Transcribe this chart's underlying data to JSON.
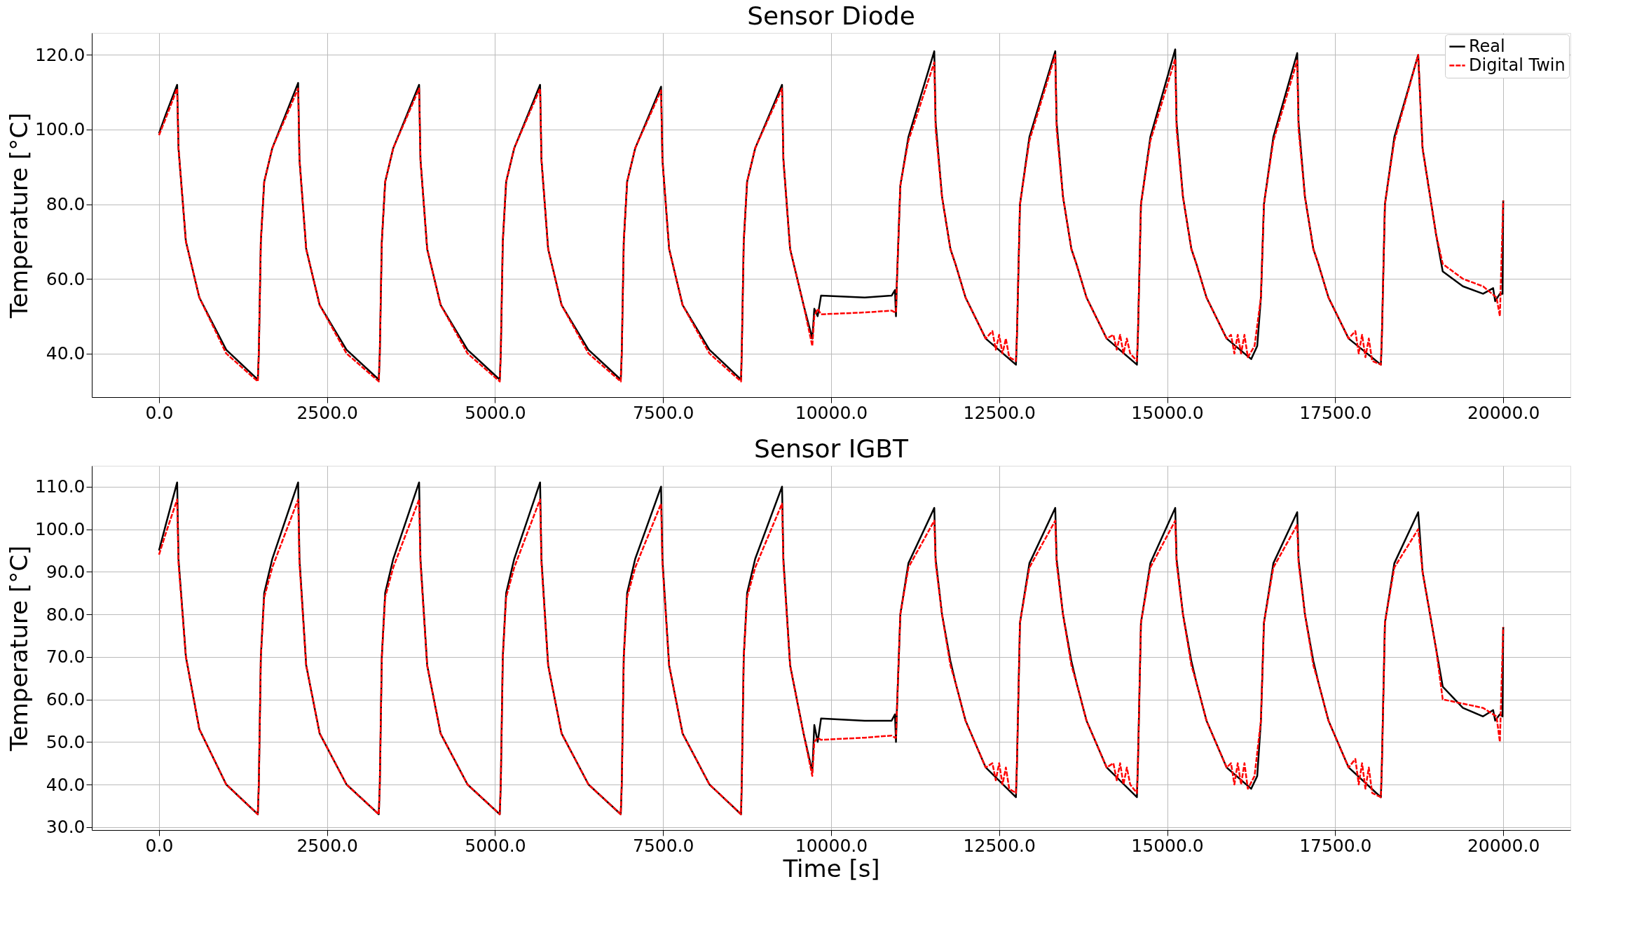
{
  "chart_data": [
    {
      "type": "line",
      "title": "Sensor Diode",
      "ylabel": "Temperature [°C]",
      "xlim": [
        -1000,
        21000
      ],
      "ylim": [
        28.3,
        125.9
      ],
      "xticks": [
        {
          "value": 0,
          "label": "0.0"
        },
        {
          "value": 2500,
          "label": "2500.0"
        },
        {
          "value": 5000,
          "label": "5000.0"
        },
        {
          "value": 7500,
          "label": "7500.0"
        },
        {
          "value": 10000,
          "label": "10000.0"
        },
        {
          "value": 12500,
          "label": "12500.0"
        },
        {
          "value": 15000,
          "label": "15000.0"
        },
        {
          "value": 17500,
          "label": "17500.0"
        },
        {
          "value": 20000,
          "label": "20000.0"
        }
      ],
      "yticks": [
        {
          "value": 40,
          "label": "40.0"
        },
        {
          "value": 60,
          "label": "60.0"
        },
        {
          "value": 80,
          "label": "80.0"
        },
        {
          "value": 100,
          "label": "100.0"
        },
        {
          "value": 120,
          "label": "120.0"
        }
      ],
      "grid": true,
      "legend": "top right",
      "series": [
        {
          "name": "Real",
          "color": "#000000",
          "line_style": "solid",
          "x": [
            0,
            100,
            270,
            290,
            400,
            600,
            1000,
            1470,
            1485,
            1515,
            1565,
            1685,
            2070,
            2090,
            2190,
            2390,
            2790,
            3270,
            3285,
            3315,
            3365,
            3485,
            3870,
            3890,
            3990,
            4190,
            4590,
            5070,
            5085,
            5115,
            5165,
            5285,
            5670,
            5690,
            5790,
            5990,
            6390,
            6870,
            6885,
            6915,
            6965,
            7085,
            7470,
            7490,
            7590,
            7790,
            8190,
            8660,
            8670,
            8700,
            8750,
            8870,
            9270,
            9290,
            9390,
            9590,
            9720,
            9750,
            9800,
            9850,
            10500,
            10900,
            10950,
            10965,
            10980,
            11030,
            11150,
            11535,
            11555,
            11650,
            11775,
            11850,
            12000,
            12300,
            12750,
            12765,
            12810,
            12950,
            13335,
            13355,
            13450,
            13575,
            13650,
            13800,
            14100,
            14550,
            14565,
            14610,
            14750,
            15120,
            15140,
            15235,
            15360,
            15435,
            15585,
            15885,
            16250,
            16340,
            16395,
            16440,
            16580,
            16935,
            16955,
            17050,
            17175,
            17250,
            17400,
            17700,
            18180,
            18195,
            18240,
            18380,
            18735,
            18800,
            19000,
            19100,
            19400,
            19700,
            19850,
            19880,
            19950,
            19990,
            20000
          ],
          "values": [
            99,
            104,
            112,
            95,
            70,
            55,
            41,
            33,
            40,
            70,
            86,
            95,
            112.5,
            92,
            68,
            53,
            41,
            33,
            40,
            70,
            86,
            95,
            112,
            92,
            68,
            53,
            41,
            33,
            40,
            70,
            86,
            95,
            112,
            92,
            68,
            53,
            41,
            33,
            40,
            70,
            86,
            95,
            111.5,
            92,
            68,
            53,
            41,
            33,
            40,
            70,
            86,
            95,
            112,
            92,
            68,
            53,
            44,
            52,
            50,
            55.5,
            55,
            55.5,
            57,
            50,
            60,
            85,
            98,
            121,
            102,
            82,
            68,
            64,
            55,
            44,
            37,
            45,
            80,
            98,
            121,
            102,
            82,
            68,
            64,
            55,
            44,
            37,
            45,
            80,
            98,
            121.5,
            102,
            82,
            68,
            64,
            55,
            44,
            38.5,
            42,
            55,
            80,
            98,
            120.5,
            102,
            82,
            68,
            64,
            55,
            44,
            37,
            45,
            80,
            98,
            120,
            95,
            72,
            62,
            58,
            56,
            57.5,
            54,
            56,
            56,
            81
          ]
        },
        {
          "name": "Digital Twin",
          "color": "#ff0000",
          "line_style": "dashed",
          "x": [
            0,
            100,
            270,
            290,
            400,
            600,
            1000,
            1470,
            1485,
            1515,
            1565,
            1685,
            2070,
            2090,
            2190,
            2390,
            2790,
            3270,
            3285,
            3315,
            3365,
            3485,
            3870,
            3890,
            3990,
            4190,
            4590,
            5070,
            5085,
            5115,
            5165,
            5285,
            5670,
            5690,
            5790,
            5990,
            6390,
            6870,
            6885,
            6915,
            6965,
            7085,
            7470,
            7490,
            7590,
            7790,
            8190,
            8660,
            8670,
            8700,
            8750,
            8870,
            9270,
            9290,
            9390,
            9590,
            9720,
            9750,
            9800,
            9850,
            10500,
            10900,
            10950,
            10965,
            10980,
            11030,
            11150,
            11535,
            11555,
            11650,
            11775,
            11850,
            12000,
            12300,
            12400,
            12450,
            12500,
            12550,
            12600,
            12650,
            12750,
            12765,
            12810,
            12950,
            13335,
            13355,
            13450,
            13575,
            13650,
            13800,
            14100,
            14200,
            14250,
            14300,
            14350,
            14400,
            14450,
            14550,
            14565,
            14610,
            14750,
            15120,
            15140,
            15235,
            15360,
            15435,
            15585,
            15885,
            15950,
            16000,
            16050,
            16100,
            16150,
            16200,
            16300,
            16395,
            16440,
            16580,
            16935,
            16955,
            17050,
            17175,
            17250,
            17400,
            17700,
            17800,
            17850,
            17900,
            17950,
            18000,
            18050,
            18180,
            18195,
            18240,
            18380,
            18735,
            18800,
            19000,
            19100,
            19400,
            19700,
            19900,
            19950,
            20000
          ],
          "values": [
            98.5,
            103,
            111,
            95,
            70,
            55,
            40,
            32.5,
            40,
            70,
            86,
            95,
            111,
            92,
            68,
            53,
            40,
            32.5,
            40,
            70,
            86,
            95,
            111,
            92,
            68,
            53,
            40,
            32.5,
            40,
            70,
            86,
            95,
            111,
            92,
            68,
            53,
            40,
            32.5,
            40,
            70,
            86,
            95,
            110.5,
            92,
            68,
            53,
            40,
            32.5,
            40,
            70,
            86,
            95,
            111,
            92,
            68,
            53,
            42,
            50,
            52,
            50.5,
            51,
            51.5,
            51,
            51,
            60,
            85,
            97,
            118,
            100,
            82,
            68,
            64,
            55,
            44,
            46,
            41,
            45,
            40,
            44,
            39,
            38,
            45,
            80,
            97,
            120,
            100,
            82,
            68,
            64,
            55,
            44,
            45,
            41,
            45,
            40,
            44,
            40,
            38,
            45,
            80,
            97,
            119,
            100,
            82,
            68,
            64,
            55,
            44,
            45,
            40,
            45,
            40,
            45,
            39,
            42,
            55,
            80,
            97,
            118.5,
            100,
            82,
            68,
            64,
            55,
            44,
            46,
            40,
            45,
            39,
            44,
            38,
            37,
            45,
            80,
            97,
            120,
            95,
            72,
            64,
            60,
            58,
            55,
            50,
            81
          ]
        }
      ]
    },
    {
      "type": "line",
      "title": "Sensor IGBT",
      "xlabel": "Time [s]",
      "ylabel": "Temperature [°C]",
      "xlim": [
        -1000,
        21000
      ],
      "ylim": [
        29.3,
        114.9
      ],
      "xticks": [
        {
          "value": 0,
          "label": "0.0"
        },
        {
          "value": 2500,
          "label": "2500.0"
        },
        {
          "value": 5000,
          "label": "5000.0"
        },
        {
          "value": 7500,
          "label": "7500.0"
        },
        {
          "value": 10000,
          "label": "10000.0"
        },
        {
          "value": 12500,
          "label": "12500.0"
        },
        {
          "value": 15000,
          "label": "15000.0"
        },
        {
          "value": 17500,
          "label": "17500.0"
        },
        {
          "value": 20000,
          "label": "20000.0"
        }
      ],
      "yticks": [
        {
          "value": 30,
          "label": "30.0"
        },
        {
          "value": 40,
          "label": "40.0"
        },
        {
          "value": 50,
          "label": "50.0"
        },
        {
          "value": 60,
          "label": "60.0"
        },
        {
          "value": 70,
          "label": "70.0"
        },
        {
          "value": 80,
          "label": "80.0"
        },
        {
          "value": 90,
          "label": "90.0"
        },
        {
          "value": 100,
          "label": "100.0"
        },
        {
          "value": 110,
          "label": "110.0"
        }
      ],
      "grid": true,
      "legend": "top right",
      "series": [
        {
          "name": "Real",
          "color": "#000000",
          "line_style": "solid",
          "x": [
            0,
            100,
            270,
            290,
            400,
            600,
            1000,
            1470,
            1485,
            1515,
            1565,
            1685,
            2070,
            2090,
            2190,
            2390,
            2790,
            3270,
            3285,
            3315,
            3365,
            3485,
            3870,
            3890,
            3990,
            4190,
            4590,
            5070,
            5085,
            5115,
            5165,
            5285,
            5670,
            5690,
            5790,
            5990,
            6390,
            6870,
            6885,
            6915,
            6965,
            7085,
            7470,
            7490,
            7590,
            7790,
            8190,
            8660,
            8670,
            8700,
            8750,
            8870,
            9270,
            9290,
            9390,
            9590,
            9720,
            9750,
            9800,
            9850,
            10500,
            10900,
            10950,
            10965,
            10980,
            11030,
            11150,
            11535,
            11555,
            11650,
            11775,
            11850,
            12000,
            12300,
            12750,
            12765,
            12810,
            12950,
            13335,
            13355,
            13450,
            13575,
            13650,
            13800,
            14100,
            14550,
            14565,
            14610,
            14750,
            15120,
            15140,
            15235,
            15360,
            15435,
            15585,
            15885,
            16250,
            16340,
            16395,
            16440,
            16580,
            16935,
            16955,
            17050,
            17175,
            17250,
            17400,
            17700,
            18180,
            18195,
            18240,
            18380,
            18735,
            18800,
            19000,
            19100,
            19400,
            19700,
            19850,
            19880,
            19950,
            19990,
            20000
          ],
          "values": [
            95,
            101,
            111,
            93,
            70,
            53,
            40,
            33,
            40,
            70,
            85,
            93,
            111,
            93,
            68,
            52,
            40,
            33,
            40,
            70,
            85,
            93,
            111,
            93,
            68,
            52,
            40,
            33,
            40,
            70,
            85,
            93,
            111,
            93,
            68,
            52,
            40,
            33,
            40,
            70,
            85,
            93,
            110,
            93,
            68,
            52,
            40,
            33,
            40,
            70,
            85,
            93,
            110,
            93,
            68,
            52,
            43,
            54,
            50,
            55.5,
            55,
            55,
            56.5,
            50,
            58,
            80,
            92,
            105,
            93,
            80,
            69,
            64,
            55,
            44,
            37,
            45,
            78,
            92,
            105,
            93,
            80,
            69,
            64,
            55,
            44,
            37,
            45,
            78,
            92,
            105,
            93,
            80,
            69,
            64,
            55,
            44,
            39,
            42,
            55,
            78,
            92,
            104,
            93,
            80,
            69,
            64,
            55,
            44,
            37,
            45,
            78,
            92,
            104,
            90,
            72,
            63,
            58,
            56,
            57.5,
            55,
            56.5,
            56,
            77
          ]
        },
        {
          "name": "Digital Twin",
          "color": "#ff0000",
          "line_style": "dashed",
          "x": [
            0,
            100,
            270,
            290,
            400,
            600,
            1000,
            1470,
            1485,
            1515,
            1565,
            1685,
            2070,
            2090,
            2190,
            2390,
            2790,
            3270,
            3285,
            3315,
            3365,
            3485,
            3870,
            3890,
            3990,
            4190,
            4590,
            5070,
            5085,
            5115,
            5165,
            5285,
            5670,
            5690,
            5790,
            5990,
            6390,
            6870,
            6885,
            6915,
            6965,
            7085,
            7470,
            7490,
            7590,
            7790,
            8190,
            8660,
            8670,
            8700,
            8750,
            8870,
            9270,
            9290,
            9390,
            9590,
            9720,
            9750,
            9800,
            9850,
            10500,
            10900,
            10950,
            10965,
            10980,
            11030,
            11150,
            11535,
            11555,
            11650,
            11775,
            11850,
            12000,
            12300,
            12400,
            12450,
            12500,
            12550,
            12600,
            12650,
            12750,
            12765,
            12810,
            12950,
            13335,
            13355,
            13450,
            13575,
            13650,
            13800,
            14100,
            14200,
            14250,
            14300,
            14350,
            14400,
            14450,
            14550,
            14565,
            14610,
            14750,
            15120,
            15140,
            15235,
            15360,
            15435,
            15585,
            15885,
            15950,
            16000,
            16050,
            16100,
            16150,
            16200,
            16300,
            16395,
            16440,
            16580,
            16935,
            16955,
            17050,
            17175,
            17250,
            17400,
            17700,
            17800,
            17850,
            17900,
            17950,
            18000,
            18050,
            18180,
            18195,
            18240,
            18380,
            18735,
            18800,
            19000,
            19100,
            19400,
            19700,
            19900,
            19950,
            20000
          ],
          "values": [
            94,
            99,
            107,
            92,
            70,
            53,
            40,
            33,
            40,
            70,
            84,
            91,
            107,
            92,
            68,
            52,
            40,
            33,
            40,
            70,
            84,
            91,
            107,
            92,
            68,
            52,
            40,
            33,
            40,
            70,
            84,
            91,
            107,
            92,
            68,
            52,
            40,
            33,
            40,
            70,
            84,
            91,
            106,
            92,
            68,
            52,
            40,
            33,
            40,
            70,
            84,
            91,
            106,
            92,
            68,
            52,
            42,
            50,
            51,
            50.5,
            51,
            51.5,
            51,
            51,
            58,
            80,
            91,
            102,
            92,
            80,
            68,
            64,
            55,
            44,
            45,
            41,
            45,
            40,
            44,
            39,
            38,
            45,
            78,
            91,
            102,
            92,
            80,
            68,
            64,
            55,
            44,
            45,
            41,
            45,
            40,
            44,
            40,
            38,
            45,
            78,
            91,
            102,
            92,
            80,
            68,
            64,
            55,
            44,
            45,
            40,
            45,
            40,
            45,
            39,
            42,
            55,
            78,
            91,
            101,
            92,
            80,
            68,
            64,
            55,
            44,
            46,
            40,
            45,
            39,
            44,
            38,
            37,
            45,
            78,
            91,
            100,
            90,
            72,
            60,
            59,
            58,
            56,
            50,
            77
          ]
        }
      ]
    }
  ]
}
